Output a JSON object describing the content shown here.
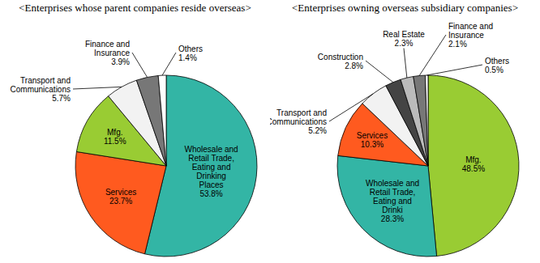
{
  "chart_data": [
    {
      "type": "pie",
      "title": "<Enterprises whose parent companies reside overseas>",
      "categories": [
        "Wholesale and Retail Trade, Eating and Drinking Places",
        "Services",
        "Mfg.",
        "Transport and Communications",
        "Finance and Insurance",
        "Others"
      ],
      "values": [
        53.8,
        23.7,
        11.5,
        5.7,
        3.9,
        1.4
      ],
      "value_labels": [
        "53.8%",
        "23.7%",
        "11.5%",
        "5.7%",
        "3.9%",
        "1.4%"
      ],
      "colors": [
        "#33b5a5",
        "#ff5a1f",
        "#99cc33",
        "#f2f2f2",
        "#777777",
        "#ffffff"
      ],
      "data_labels": true
    },
    {
      "type": "pie",
      "title": "<Enterprises owning overseas subsidiary companies>",
      "categories": [
        "Mfg.",
        "Wholesale and Retail Trade, Eating and Drinki",
        "Services",
        "Transport and Communications",
        "Construction",
        "Real Estate",
        "Finance and Insurance",
        "Others"
      ],
      "values": [
        48.5,
        28.3,
        10.3,
        5.2,
        2.8,
        2.3,
        2.1,
        0.5
      ],
      "value_labels": [
        "48.5%",
        "28.3%",
        "10.3%",
        "5.2%",
        "2.8%",
        "2.3%",
        "2.1%",
        "0.5%"
      ],
      "colors": [
        "#99cc33",
        "#33b5a5",
        "#ff5a1f",
        "#f2f2f2",
        "#444444",
        "#bbbbbb",
        "#777777",
        "#ffffff"
      ],
      "data_labels": true
    }
  ]
}
